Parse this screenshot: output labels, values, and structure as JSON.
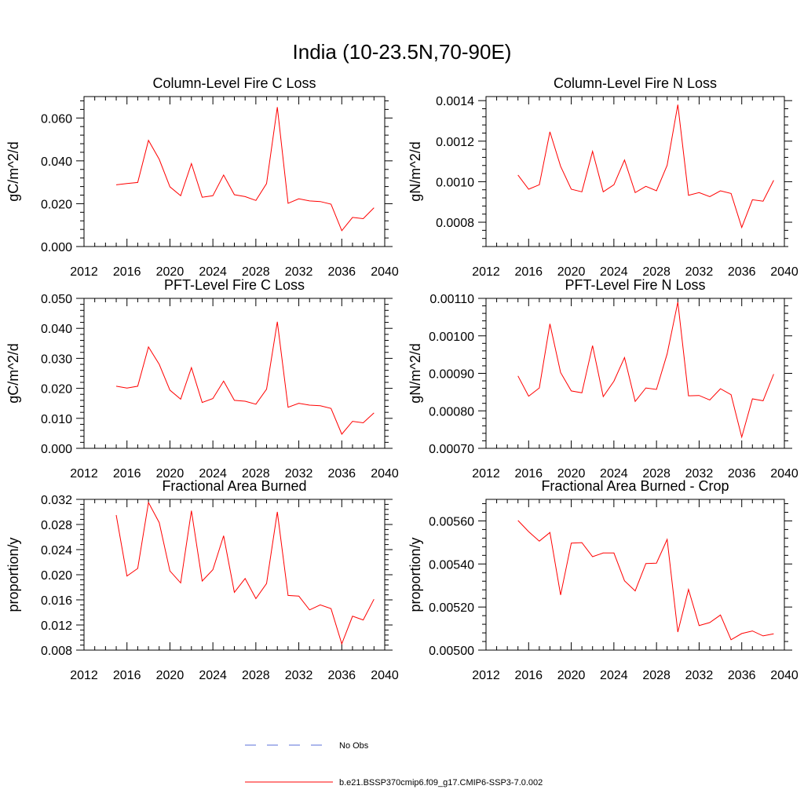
{
  "figure": {
    "title": "India (10-23.5N,70-90E)",
    "legend": [
      {
        "label": "No Obs",
        "color": "#5a6fd8",
        "style": "dashed"
      },
      {
        "label": "b.e21.BSSP370cmip6.f09_g17.CMIP6-SSP3-7.0.002",
        "color": "#ff0000",
        "style": "solid"
      }
    ]
  },
  "chart_data": [
    {
      "type": "line",
      "title": "Column-Level Fire C Loss",
      "ylabel": "gC/m^2/d",
      "xlim": [
        2012,
        2040
      ],
      "ylim": [
        0,
        0.07
      ],
      "xticks": [
        2012,
        2016,
        2020,
        2024,
        2028,
        2032,
        2036,
        2040
      ],
      "yticks": [
        "0.000",
        "0.020",
        "0.040",
        "0.060"
      ],
      "x": [
        2015,
        2016,
        2017,
        2018,
        2019,
        2020,
        2021,
        2022,
        2023,
        2024,
        2025,
        2026,
        2027,
        2028,
        2029,
        2030,
        2031,
        2032,
        2033,
        2034,
        2035,
        2036,
        2037,
        2038,
        2039
      ],
      "series": [
        {
          "color": "#ff0000",
          "values": [
            0.0288,
            0.0294,
            0.0299,
            0.0496,
            0.0407,
            0.0279,
            0.0237,
            0.0387,
            0.023,
            0.0237,
            0.0334,
            0.0242,
            0.0233,
            0.0215,
            0.0294,
            0.0651,
            0.0202,
            0.0223,
            0.0213,
            0.021,
            0.0198,
            0.0074,
            0.0136,
            0.013,
            0.0181
          ]
        }
      ]
    },
    {
      "type": "line",
      "title": "Column-Level Fire N Loss",
      "ylabel": "gN/m^2/d",
      "xlim": [
        2012,
        2040
      ],
      "ylim": [
        0.00068,
        0.00142
      ],
      "xticks": [
        2012,
        2016,
        2020,
        2024,
        2028,
        2032,
        2036,
        2040
      ],
      "yticks": [
        "0.0008",
        "0.0010",
        "0.0012",
        "0.0014"
      ],
      "x": [
        2015,
        2016,
        2017,
        2018,
        2019,
        2020,
        2021,
        2022,
        2023,
        2024,
        2025,
        2026,
        2027,
        2028,
        2029,
        2030,
        2031,
        2032,
        2033,
        2034,
        2035,
        2036,
        2037,
        2038,
        2039
      ],
      "series": [
        {
          "color": "#ff0000",
          "values": [
            0.001033,
            0.000963,
            0.000985,
            0.001246,
            0.001076,
            0.000963,
            0.00095,
            0.00115,
            0.00095,
            0.000985,
            0.001107,
            0.000946,
            0.000977,
            0.000955,
            0.001081,
            0.00138,
            0.000933,
            0.000946,
            0.000926,
            0.000955,
            0.000942,
            0.000774,
            0.000911,
            0.000904,
            0.001007
          ]
        }
      ]
    },
    {
      "type": "line",
      "title": "PFT-Level Fire C Loss",
      "ylabel": "gC/m^2/d",
      "xlim": [
        2012,
        2040
      ],
      "ylim": [
        0,
        0.05
      ],
      "xticks": [
        2012,
        2016,
        2020,
        2024,
        2028,
        2032,
        2036,
        2040
      ],
      "yticks": [
        "0.000",
        "0.010",
        "0.020",
        "0.030",
        "0.040",
        "0.050"
      ],
      "x": [
        2015,
        2016,
        2017,
        2018,
        2019,
        2020,
        2021,
        2022,
        2023,
        2024,
        2025,
        2026,
        2027,
        2028,
        2029,
        2030,
        2031,
        2032,
        2033,
        2034,
        2035,
        2036,
        2037,
        2038,
        2039
      ],
      "series": [
        {
          "color": "#ff0000",
          "values": [
            0.0207,
            0.0201,
            0.0207,
            0.0338,
            0.028,
            0.0194,
            0.0164,
            0.0269,
            0.0153,
            0.0166,
            0.0224,
            0.016,
            0.0157,
            0.0147,
            0.0197,
            0.0422,
            0.0137,
            0.015,
            0.0144,
            0.0142,
            0.0133,
            0.0047,
            0.009,
            0.0085,
            0.0118
          ]
        }
      ]
    },
    {
      "type": "line",
      "title": "PFT-Level Fire N Loss",
      "ylabel": "gN/m^2/d",
      "xlim": [
        2012,
        2040
      ],
      "ylim": [
        0.0007,
        0.0011
      ],
      "xticks": [
        2012,
        2016,
        2020,
        2024,
        2028,
        2032,
        2036,
        2040
      ],
      "yticks": [
        "0.00070",
        "0.00080",
        "0.00090",
        "0.00100",
        "0.00110"
      ],
      "x": [
        2015,
        2016,
        2017,
        2018,
        2019,
        2020,
        2021,
        2022,
        2023,
        2024,
        2025,
        2026,
        2027,
        2028,
        2029,
        2030,
        2031,
        2032,
        2033,
        2034,
        2035,
        2036,
        2037,
        2038,
        2039
      ],
      "series": [
        {
          "color": "#ff0000",
          "values": [
            0.000893,
            0.000839,
            0.000861,
            0.001032,
            0.000902,
            0.000853,
            0.000848,
            0.000974,
            0.000838,
            0.000879,
            0.000942,
            0.000825,
            0.000861,
            0.000857,
            0.000952,
            0.00109,
            0.00084,
            0.000841,
            0.000829,
            0.000859,
            0.000843,
            0.00073,
            0.000832,
            0.000827,
            0.000898
          ]
        }
      ]
    },
    {
      "type": "line",
      "title": "Fractional Area Burned",
      "ylabel": "proportion/y",
      "xlim": [
        2012,
        2040
      ],
      "ylim": [
        0.008,
        0.032
      ],
      "xticks": [
        2012,
        2016,
        2020,
        2024,
        2028,
        2032,
        2036,
        2040
      ],
      "yticks": [
        "0.008",
        "0.012",
        "0.016",
        "0.020",
        "0.024",
        "0.028",
        "0.032"
      ],
      "x": [
        2015,
        2016,
        2017,
        2018,
        2019,
        2020,
        2021,
        2022,
        2023,
        2024,
        2025,
        2026,
        2027,
        2028,
        2029,
        2030,
        2031,
        2032,
        2033,
        2034,
        2035,
        2036,
        2037,
        2038,
        2039
      ],
      "series": [
        {
          "color": "#ff0000",
          "values": [
            0.0295,
            0.0198,
            0.021,
            0.0315,
            0.0283,
            0.0206,
            0.0187,
            0.0302,
            0.019,
            0.0208,
            0.0262,
            0.0172,
            0.0194,
            0.0162,
            0.0186,
            0.03,
            0.0167,
            0.0166,
            0.0144,
            0.0152,
            0.0146,
            0.009,
            0.0134,
            0.0128,
            0.0161
          ]
        }
      ]
    },
    {
      "type": "line",
      "title": "Fractional Area Burned - Crop",
      "ylabel": "proportion/y",
      "xlim": [
        2012,
        2040
      ],
      "ylim": [
        0.005,
        0.0057
      ],
      "xticks": [
        2012,
        2016,
        2020,
        2024,
        2028,
        2032,
        2036,
        2040
      ],
      "yticks": [
        "0.00500",
        "0.00520",
        "0.00540",
        "0.00560"
      ],
      "x": [
        2015,
        2016,
        2017,
        2018,
        2019,
        2020,
        2021,
        2022,
        2023,
        2024,
        2025,
        2026,
        2027,
        2028,
        2029,
        2030,
        2031,
        2032,
        2033,
        2034,
        2035,
        2036,
        2037,
        2038,
        2039
      ],
      "series": [
        {
          "color": "#ff0000",
          "values": [
            0.005602,
            0.00555,
            0.005506,
            0.005546,
            0.005256,
            0.005497,
            0.005499,
            0.005434,
            0.005451,
            0.005451,
            0.005322,
            0.005275,
            0.005402,
            0.005404,
            0.005514,
            0.005084,
            0.005282,
            0.005114,
            0.005128,
            0.005163,
            0.005048,
            0.005077,
            0.005089,
            0.005066,
            0.005076
          ]
        }
      ]
    }
  ]
}
